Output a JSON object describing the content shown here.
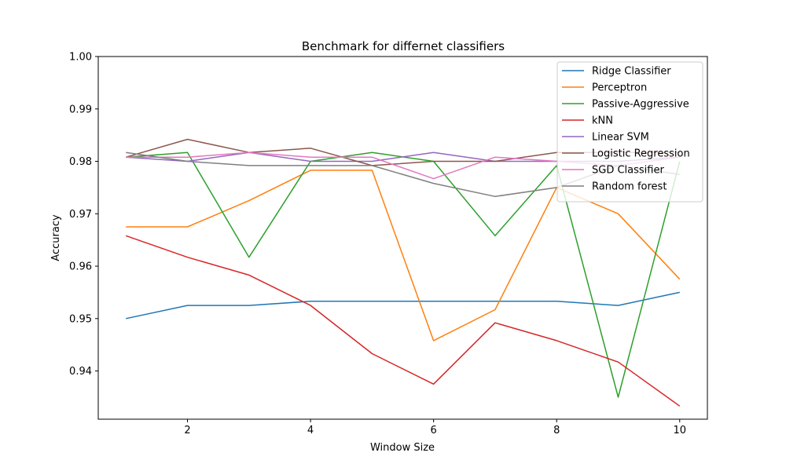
{
  "chart_data": {
    "type": "line",
    "title": "Benchmark for differnet classifiers",
    "xlabel": "Window Size",
    "ylabel": "Accuracy",
    "x": [
      1,
      2,
      3,
      4,
      5,
      6,
      7,
      8,
      9,
      10
    ],
    "xlim": [
      0.55,
      10.45
    ],
    "ylim": [
      0.9308,
      1.0
    ],
    "xticks": [
      2,
      4,
      6,
      8,
      10
    ],
    "yticks": [
      0.94,
      0.95,
      0.96,
      0.97,
      0.98,
      0.99,
      1.0
    ],
    "ytick_labels": [
      "0.94",
      "0.95",
      "0.96",
      "0.97",
      "0.98",
      "0.99",
      "1.00"
    ],
    "grid": false,
    "legend_position": "top-right",
    "series": [
      {
        "name": "Ridge Classifier",
        "color": "#1f77b4",
        "values": [
          0.95,
          0.9525,
          0.9525,
          0.9533,
          0.9533,
          0.9533,
          0.9533,
          0.9533,
          0.9525,
          0.955
        ]
      },
      {
        "name": "Perceptron",
        "color": "#ff7f0e",
        "values": [
          0.9675,
          0.9675,
          0.9725,
          0.9783,
          0.9783,
          0.9458,
          0.9517,
          0.975,
          0.97,
          0.9575
        ]
      },
      {
        "name": "Passive-Aggressive",
        "color": "#2ca02c",
        "values": [
          0.9808,
          0.9817,
          0.9617,
          0.98,
          0.9817,
          0.98,
          0.9658,
          0.9792,
          0.935,
          0.98
        ]
      },
      {
        "name": "kNN",
        "color": "#d62728",
        "values": [
          0.9658,
          0.9617,
          0.9583,
          0.9525,
          0.9433,
          0.9375,
          0.9492,
          0.9458,
          0.9417,
          0.9333
        ]
      },
      {
        "name": "Linear SVM",
        "color": "#9467bd",
        "values": [
          0.9808,
          0.98,
          0.9817,
          0.98,
          0.98,
          0.9817,
          0.98,
          0.98,
          0.98,
          0.9808
        ]
      },
      {
        "name": "Logistic Regression",
        "color": "#8c564b",
        "values": [
          0.9808,
          0.9842,
          0.9817,
          0.9825,
          0.9792,
          0.98,
          0.98,
          0.9817,
          0.9817,
          0.9817
        ]
      },
      {
        "name": "SGD Classifier",
        "color": "#e377c2",
        "values": [
          0.9808,
          0.9808,
          0.9817,
          0.9808,
          0.9808,
          0.9767,
          0.9808,
          0.98,
          0.9792,
          0.9808
        ]
      },
      {
        "name": "Random forest",
        "color": "#7f7f7f",
        "values": [
          0.9817,
          0.98,
          0.9792,
          0.9792,
          0.9792,
          0.9758,
          0.9733,
          0.975,
          0.9792,
          0.9775
        ]
      }
    ]
  }
}
